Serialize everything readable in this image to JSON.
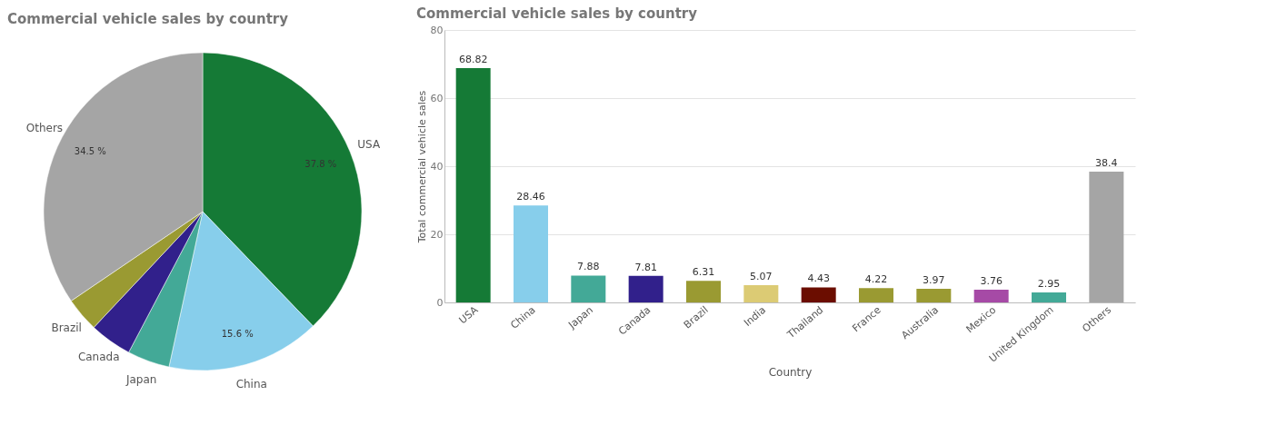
{
  "chart_data": [
    {
      "type": "pie",
      "title": "Commercial vehicle sales by country",
      "categories": [
        "USA",
        "China",
        "Japan",
        "Canada",
        "Brazil",
        "Others"
      ],
      "values": [
        37.8,
        15.6,
        4.3,
        4.3,
        3.5,
        34.5
      ],
      "colors": [
        "#157a36",
        "#87ceeb",
        "#43a997",
        "#31208b",
        "#9a9a32",
        "#a5a5a5"
      ],
      "value_labels": [
        "37.8 %",
        "15.6 %",
        null,
        null,
        null,
        "34.5 %"
      ],
      "legend": false
    },
    {
      "type": "bar",
      "title": "Commercial vehicle sales by country",
      "xlabel": "Country",
      "ylabel": "Total commercial vehicle sales",
      "categories": [
        "USA",
        "China",
        "Japan",
        "Canada",
        "Brazil",
        "India",
        "Thailand",
        "France",
        "Australia",
        "Mexico",
        "United Kingdom",
        "Others"
      ],
      "values": [
        68.82,
        28.46,
        7.88,
        7.81,
        6.31,
        5.07,
        4.43,
        4.22,
        3.97,
        3.76,
        2.95,
        38.4
      ],
      "colors": [
        "#157a36",
        "#87ceeb",
        "#43a997",
        "#31208b",
        "#9a9a32",
        "#dccb74",
        "#6b0d00",
        "#9a9a32",
        "#9a9a32",
        "#a64aa6",
        "#43a997",
        "#a5a5a5"
      ],
      "ylim": [
        0,
        80
      ],
      "yticks": [
        0,
        20,
        40,
        60,
        80
      ],
      "grid": "y",
      "data_labels": true
    }
  ]
}
